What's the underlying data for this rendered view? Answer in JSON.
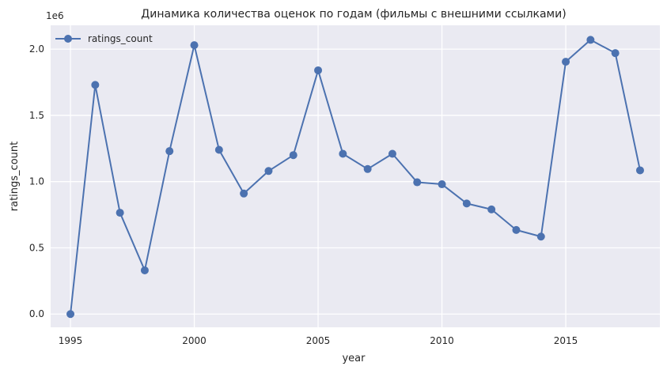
{
  "chart_data": {
    "type": "line",
    "title": "Динамика количества оценок по годам (фильмы с внешними ссылками)",
    "xlabel": "year",
    "ylabel": "ratings_count",
    "y_offset_label": "1e6",
    "xlim": [
      1994.2,
      2018.8
    ],
    "ylim": [
      -0.1,
      2.18
    ],
    "x_ticks": [
      1995,
      2000,
      2005,
      2010,
      2015
    ],
    "y_ticks": [
      0.0,
      0.5,
      1.0,
      1.5,
      2.0
    ],
    "y_tick_labels": [
      "0.0",
      "0.5",
      "1.0",
      "1.5",
      "2.0"
    ],
    "grid": true,
    "legend_position": "top-left",
    "series": [
      {
        "name": "ratings_count",
        "color": "#4c72b0",
        "x": [
          1995,
          1996,
          1997,
          1998,
          1999,
          2000,
          2001,
          2002,
          2003,
          2004,
          2005,
          2006,
          2007,
          2008,
          2009,
          2010,
          2011,
          2012,
          2013,
          2014,
          2015,
          2016,
          2017,
          2018
        ],
        "values": [
          0.0,
          1.73,
          0.765,
          0.33,
          1.23,
          2.03,
          1.24,
          0.91,
          1.08,
          1.2,
          1.84,
          1.21,
          1.095,
          1.21,
          0.995,
          0.98,
          0.835,
          0.79,
          0.635,
          0.585,
          1.905,
          2.07,
          1.97,
          1.085
        ]
      }
    ]
  }
}
